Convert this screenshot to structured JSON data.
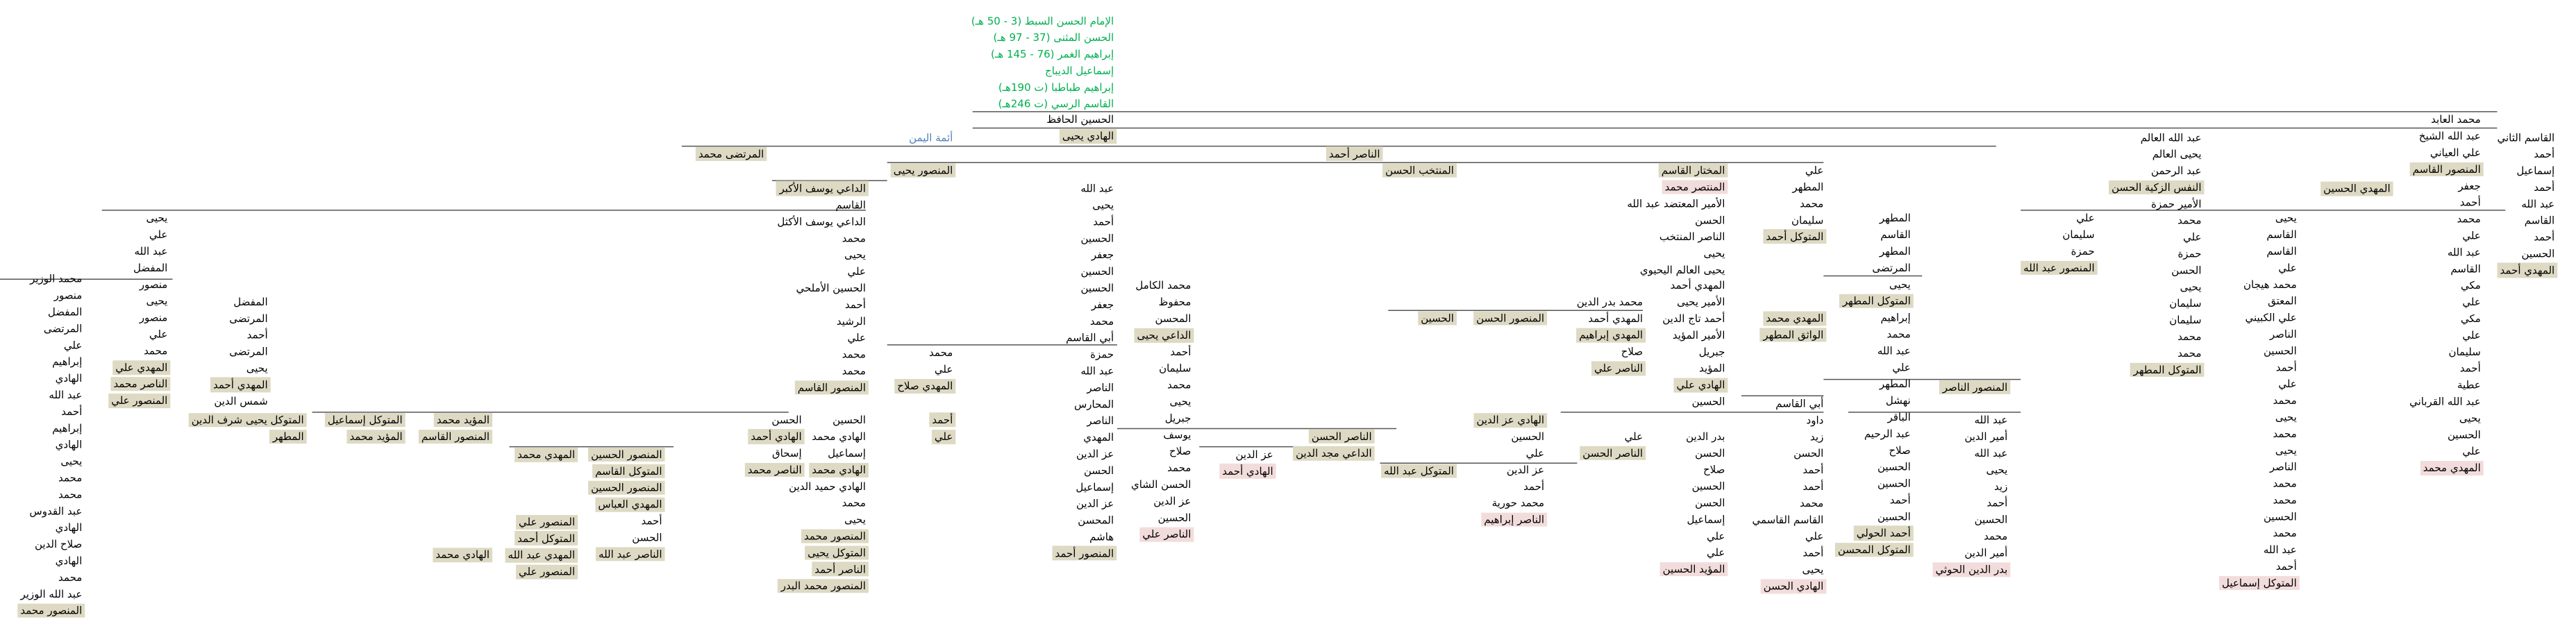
{
  "groups": [
    {
      "names": [
        "الإمام الحسن السبط (3 - 50 هـ)",
        "الحسن المثنى (37 - 97 هـ)",
        "إبراهيم الغمر (76 - 145 هـ)",
        "إسماعيل الديباج",
        "إبراهيم طباطبا (ت 190هـ)",
        "القاسم الرسي (ت 246هـ)"
      ]
    },
    {
      "names": [
        "الحسين الحافظ",
        "الهادي يحيى"
      ]
    },
    {
      "names": [
        "أئمة اليمن"
      ]
    },
    {
      "names": [
        "القاسم الثاني",
        "أحمد",
        "إسماعيل",
        "أحمد",
        "عبد الله",
        "القاسم",
        "أحمد",
        "الحسين",
        "المهدي أحمد"
      ]
    },
    {
      "names": [
        "محمد العابد",
        "عبد الله الشيخ",
        "علي العياني",
        "المنصور القاسم",
        "جعفر",
        "أحمد",
        "محمد",
        "علي",
        "عبد الله",
        "القاسم",
        "مكي",
        "علي",
        "مكي",
        "علي",
        "سليمان",
        "أحمد",
        "عطية",
        "عبد الله القرباني",
        "يحيى",
        "الحسين",
        "علي",
        "المهدي محمد"
      ]
    },
    {
      "names": [
        "المهدي الحسين"
      ]
    },
    {
      "names": [
        "يحيى",
        "القاسم",
        "القاسم",
        "علي",
        "محمد هيجان",
        "المعتق",
        "علي الكبيني",
        "الناصر",
        "الحسين",
        "أحمد",
        "علي",
        "محمد",
        "يحيى",
        "محمد",
        "يحيى",
        "الناصر",
        "محمد",
        "محمد",
        "الحسين",
        "محمد",
        "عبد الله",
        "أحمد",
        "المتوكل إسماعيل"
      ]
    },
    {
      "names": [
        "عبد الله العالم",
        "يحيى العالم",
        "عبد الرحمن",
        "النفس الزكية الحسن",
        "الأمير حمزة",
        "محمد",
        "علي",
        "حمزة",
        "الحسن",
        "يحيى",
        "سليمان",
        "سليمان",
        "محمد",
        "محمد",
        "المتوكل المطهر"
      ]
    },
    {
      "names": [
        "علي",
        "سليمان",
        "حمزة",
        "المنصور عبد الله"
      ]
    },
    {
      "names": [
        "المطهر",
        "القاسم",
        "المطهر",
        "المرتضى",
        "يحيى",
        "المتوكل المطهر",
        "إبراهيم",
        "محمد",
        "عبد الله",
        "علي",
        "المطهر",
        "نهشل",
        "الباقر",
        "عبد الرحيم",
        "صلاح",
        "الحسين",
        "الحسين",
        "أحمد",
        "الحسين",
        "أحمد الحولي",
        "المتوكل المحسن"
      ]
    },
    {
      "names": [
        "المنصور الناصر"
      ]
    },
    {
      "names": [
        "عبد الله",
        "أمير الدين",
        "عبد الله",
        "يحيى",
        "زيد",
        "أحمد",
        "الحسين",
        "محمد",
        "أمير الدين",
        "بدر الدين الحوثي"
      ]
    },
    {
      "names": [
        "علي",
        "المطهر",
        "محمد",
        "سليمان",
        "المتوكل أحمد"
      ]
    },
    {
      "names": [
        "المهدي محمد",
        "الواثق المطهر"
      ]
    },
    {
      "names": [
        "أبي القاسم",
        "داود",
        "زيد",
        "الحسن",
        "أحمد",
        "أحمد",
        "محمد",
        "القاسم القاسمي",
        "علي",
        "أحمد",
        "يحيى",
        "الهادي الحسن"
      ]
    },
    {
      "names": [
        "المختار القاسم",
        "المنتصر محمد",
        "الأمير المعتضد عبد الله",
        "الحسن",
        "الناصر المنتخب",
        "يحيى",
        "يحيى العالم اليحيوي"
      ]
    },
    {
      "names": [
        "المهدي أحمد",
        "الأمير يحيى",
        "أحمد تاج الدين",
        "الأمير المؤيد",
        "جبريل",
        "المؤيد",
        "الهادي علي",
        "الحسين"
      ]
    },
    {
      "names": [
        "بدر الدين",
        "الحسن",
        "صلاح",
        "الحسين",
        "الحسن",
        "إسماعيل",
        "علي",
        "علي",
        "المؤيد الحسين"
      ]
    },
    {
      "names": [
        "محمد بدر الدين",
        "المهدي أحمد",
        "المهدي إبراهيم",
        "صلاح",
        "الناصر علي"
      ]
    },
    {
      "names": [
        "علي",
        "الناصر الحسن"
      ]
    },
    {
      "names": [
        "المنصور الحسن"
      ]
    },
    {
      "names": [
        "الحسين"
      ]
    },
    {
      "names": [
        "المنتخب الحسن"
      ]
    },
    {
      "names": [
        "الناصر أحمد"
      ]
    },
    {
      "names": [
        "الهادي عز الدين",
        "الحسين",
        "علي",
        "عز الدين",
        "أحمد",
        "محمد حورية",
        "الناصر إبراهيم"
      ]
    },
    {
      "names": [
        "المتوكل عبد الله"
      ]
    },
    {
      "names": [
        "الناصر الحسن",
        "الداعي مجد الدين"
      ]
    },
    {
      "names": [
        "عز الدين",
        "الهادي أحمد"
      ]
    },
    {
      "names": [
        "محمد الكامل",
        "محفوظ",
        "المحسن",
        "الداعي يحيى",
        "أحمد",
        "سليمان",
        "محمد",
        "يحيى",
        "جبريل",
        "يوسف",
        "صلاح",
        "محمد",
        "الحسن الشاي",
        "عز الدين",
        "الحسين",
        "الناصر علي"
      ]
    },
    {
      "names": [
        "عبد الله",
        "يحيى",
        "أحمد",
        "الحسين",
        "جعفر",
        "الحسين",
        "الحسين",
        "جعفر",
        "محمد",
        "أبي القاسم",
        "حمزة",
        "عبد الله",
        "الناصر",
        "المحارس",
        "الناصر",
        "المهدي",
        "عز الدين",
        "الحسن",
        "إسماعيل",
        "عز الدين",
        "المحسن",
        "هاشم",
        "المنصور أحمد"
      ]
    },
    {
      "names": [
        "المنصور يحيى"
      ]
    },
    {
      "names": [
        "محمد",
        "علي",
        "المهدي صلاح"
      ]
    },
    {
      "names": [
        "أحمد",
        "علي"
      ]
    },
    {
      "names": [
        "الداعي يوسف الأكبر",
        "القاسم",
        "الداعي يوسف الأكثل",
        "محمد",
        "يحيى",
        "علي",
        "الحسين الأملحي",
        "أحمد",
        "الرشيد",
        "علي",
        "محمد",
        "محمد",
        "المنصور القاسم"
      ]
    },
    {
      "names": [
        "الحسين",
        "الهادي محمد",
        "إسماعيل",
        "الهادي محمد",
        "الهادي حميد الدين",
        "محمد",
        "يحيى",
        "المنصور محمد",
        "المتوكل يحيى",
        "الناصر أحمد",
        "المنصور محمد البدر"
      ]
    },
    {
      "names": [
        "الحسن",
        "الهادي أحمد",
        "إسحاق",
        "الناصر محمد"
      ]
    },
    {
      "names": [
        "المرتضى محمد"
      ]
    },
    {
      "names": [
        "المنصور الحسين",
        "المتوكل القاسم",
        "المنصور الحسين",
        "المهدي العباس",
        "أحمد",
        "الحسن",
        "الناصر عبد الله"
      ]
    },
    {
      "names": [
        "المهدي محمد"
      ]
    },
    {
      "names": [
        "المنصور علي",
        "المتوكل أحمد",
        "المهدي عبد الله",
        "المنصور علي"
      ]
    },
    {
      "names": [
        "المؤيد محمد",
        "المنصور القاسم"
      ]
    },
    {
      "names": [
        "الهادي محمد"
      ]
    },
    {
      "names": [
        "المتوكل إسماعيل",
        "المؤيد محمد"
      ]
    },
    {
      "names": [
        "المتوكل يحيى شرف الدين",
        "المطهر"
      ]
    },
    {
      "names": [
        "المفضل",
        "المرتضى",
        "أحمد",
        "المرتضى",
        "يحيى",
        "المهدي أحمد",
        "شمس الدين"
      ]
    },
    {
      "names": [
        "يحيى",
        "علي",
        "عبد الله",
        "المفضل",
        "منصور",
        "يحيى",
        "منصور",
        "علي",
        "محمد",
        "المهدي علي",
        "الناصر محمد",
        "المنصور علي"
      ]
    },
    {
      "names": [
        "محمد الوزير",
        "منصور",
        "المفضل",
        "المرتضى",
        "علي",
        "إبراهيم",
        "الهادي",
        "عبد الله",
        "أحمد",
        "إبراهيم",
        "الهادي",
        "يحيى",
        "محمد",
        "محمد",
        "عبد القدوس",
        "الهادي",
        "صلاح الدين",
        "الهادي",
        "محمد",
        "عبد الله الوزير",
        "المنصور محمد"
      ]
    }
  ]
}
